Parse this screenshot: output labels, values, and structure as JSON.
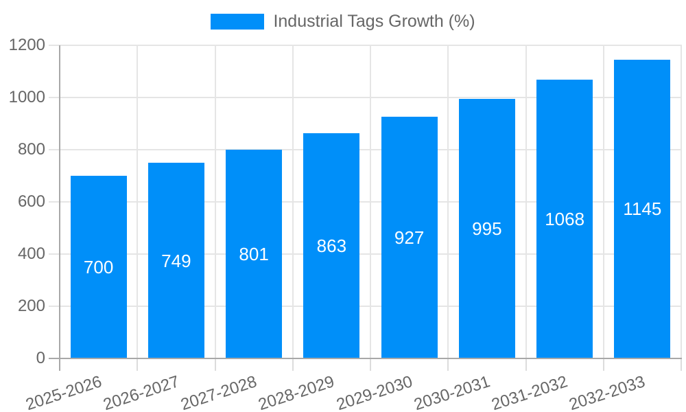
{
  "chart_data": {
    "type": "bar",
    "title": "Industrial Tags Growth (%)",
    "legend": {
      "position": "top",
      "label": "Industrial Tags Growth (%)"
    },
    "categories": [
      "2025-2026",
      "2026-2027",
      "2027-2028",
      "2028-2029",
      "2029-2030",
      "2030-2031",
      "2031-2032",
      "2032-2033"
    ],
    "values": [
      700,
      749,
      801,
      863,
      927,
      995,
      1068,
      1145
    ],
    "xlabel": "",
    "ylabel": "",
    "ylim": [
      0,
      1200
    ],
    "yticks": [
      0,
      200,
      400,
      600,
      800,
      1000,
      1200
    ],
    "grid": true,
    "bar_color": "#008FF9",
    "bar_value_labels": {
      "color": "#FFFFFF",
      "position": "center"
    }
  },
  "colors": {
    "background": "#FFFFFF",
    "gridline": "#E5E5E5",
    "axis_line": "#A8A8A8",
    "tick_label_text": "#666666",
    "legend_text": "#666666"
  }
}
